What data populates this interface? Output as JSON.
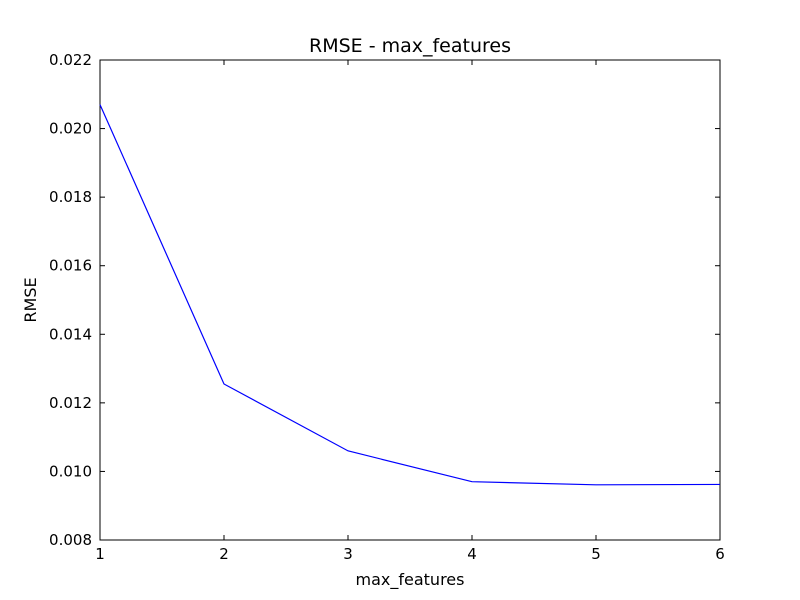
{
  "chart_data": {
    "type": "line",
    "title": "RMSE - max_features",
    "xlabel": "max_features",
    "ylabel": "RMSE",
    "xlim": [
      1,
      6
    ],
    "ylim": [
      0.008,
      0.022
    ],
    "x_ticks": [
      1,
      2,
      3,
      4,
      5,
      6
    ],
    "x_tick_labels": [
      "1",
      "2",
      "3",
      "4",
      "5",
      "6"
    ],
    "y_ticks": [
      0.008,
      0.01,
      0.012,
      0.014,
      0.016,
      0.018,
      0.02,
      0.022
    ],
    "y_tick_labels": [
      "0.008",
      "0.010",
      "0.012",
      "0.014",
      "0.016",
      "0.018",
      "0.020",
      "0.022"
    ],
    "grid": false,
    "series": [
      {
        "color": "#0000ff",
        "x": [
          1,
          2,
          3,
          4,
          5,
          6
        ],
        "y": [
          0.0207,
          0.01255,
          0.0106,
          0.0097,
          0.00961,
          0.00962
        ]
      }
    ]
  }
}
